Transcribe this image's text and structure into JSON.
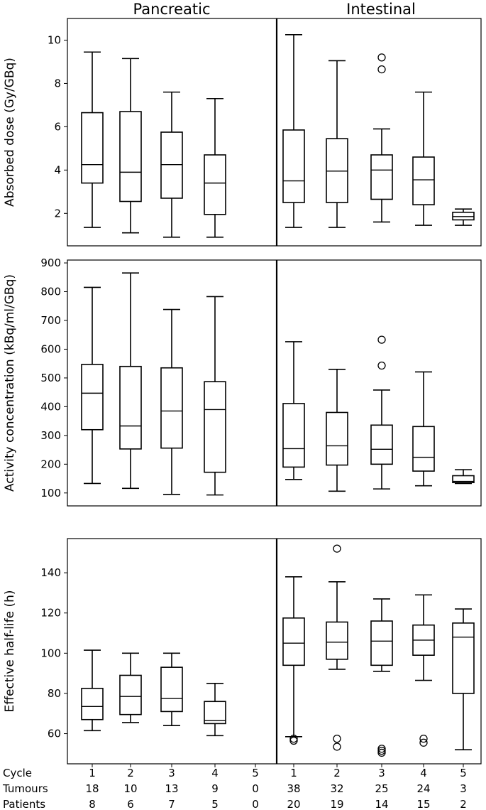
{
  "chart_data": {
    "type": "box",
    "column_titles": [
      "Pancreatic",
      "Intestinal"
    ],
    "panels": [
      {
        "ylabel": "Absorbed dose (Gy/GBq)",
        "ylim": [
          0.5,
          11
        ],
        "yticks": [
          2,
          4,
          6,
          8,
          10
        ],
        "groups": {
          "Pancreatic": [
            {
              "cycle": "1",
              "whislo": 1.35,
              "q1": 3.4,
              "med": 4.25,
              "q3": 6.65,
              "whishi": 9.45,
              "fliers": []
            },
            {
              "cycle": "2",
              "whislo": 1.1,
              "q1": 2.55,
              "med": 3.9,
              "q3": 6.7,
              "whishi": 9.15,
              "fliers": []
            },
            {
              "cycle": "3",
              "whislo": 0.9,
              "q1": 2.7,
              "med": 4.25,
              "q3": 5.75,
              "whishi": 7.6,
              "fliers": []
            },
            {
              "cycle": "4",
              "whislo": 0.9,
              "q1": 1.95,
              "med": 3.4,
              "q3": 4.7,
              "whishi": 7.3,
              "fliers": []
            }
          ],
          "Intestinal": [
            {
              "cycle": "1",
              "whislo": 1.35,
              "q1": 2.5,
              "med": 3.5,
              "q3": 5.85,
              "whishi": 10.25,
              "fliers": []
            },
            {
              "cycle": "2",
              "whislo": 1.35,
              "q1": 2.5,
              "med": 3.95,
              "q3": 5.45,
              "whishi": 9.05,
              "fliers": []
            },
            {
              "cycle": "3",
              "whislo": 1.6,
              "q1": 2.65,
              "med": 4.0,
              "q3": 4.7,
              "whishi": 5.9,
              "fliers": [
                8.65,
                9.2
              ]
            },
            {
              "cycle": "4",
              "whislo": 1.45,
              "q1": 2.4,
              "med": 3.55,
              "q3": 4.6,
              "whishi": 7.6,
              "fliers": []
            },
            {
              "cycle": "5",
              "whislo": 1.45,
              "q1": 1.7,
              "med": 1.85,
              "q3": 2.05,
              "whishi": 2.2,
              "fliers": []
            }
          ]
        }
      },
      {
        "ylabel": "Activity concentration (kBq/ml/GBq)",
        "ylim": [
          55,
          910
        ],
        "yticks": [
          100,
          200,
          300,
          400,
          500,
          600,
          700,
          800,
          900
        ],
        "groups": {
          "Pancreatic": [
            {
              "cycle": "1",
              "whislo": 133,
              "q1": 320,
              "med": 447,
              "q3": 547,
              "whishi": 815,
              "fliers": []
            },
            {
              "cycle": "2",
              "whislo": 116,
              "q1": 253,
              "med": 333,
              "q3": 540,
              "whishi": 865,
              "fliers": []
            },
            {
              "cycle": "3",
              "whislo": 95,
              "q1": 256,
              "med": 385,
              "q3": 535,
              "whishi": 738,
              "fliers": []
            },
            {
              "cycle": "4",
              "whislo": 93,
              "q1": 172,
              "med": 390,
              "q3": 487,
              "whishi": 783,
              "fliers": []
            }
          ],
          "Intestinal": [
            {
              "cycle": "1",
              "whislo": 147,
              "q1": 190,
              "med": 254,
              "q3": 411,
              "whishi": 626,
              "fliers": []
            },
            {
              "cycle": "2",
              "whislo": 106,
              "q1": 197,
              "med": 264,
              "q3": 380,
              "whishi": 530,
              "fliers": []
            },
            {
              "cycle": "3",
              "whislo": 114,
              "q1": 200,
              "med": 252,
              "q3": 336,
              "whishi": 458,
              "fliers": [
                543,
                633
              ]
            },
            {
              "cycle": "4",
              "whislo": 125,
              "q1": 176,
              "med": 224,
              "q3": 331,
              "whishi": 521,
              "fliers": []
            },
            {
              "cycle": "5",
              "whislo": 133,
              "q1": 136,
              "med": 140,
              "q3": 160,
              "whishi": 181,
              "fliers": []
            }
          ]
        }
      },
      {
        "ylabel": "Effective half-life (h)",
        "ylim": [
          45,
          157
        ],
        "yticks": [
          60,
          80,
          100,
          120,
          140
        ],
        "groups": {
          "Pancreatic": [
            {
              "cycle": "1",
              "whislo": 61.5,
              "q1": 67,
              "med": 73.5,
              "q3": 82.5,
              "whishi": 101.5,
              "fliers": []
            },
            {
              "cycle": "2",
              "whislo": 65.5,
              "q1": 69.5,
              "med": 78.5,
              "q3": 89,
              "whishi": 100,
              "fliers": []
            },
            {
              "cycle": "3",
              "whislo": 64,
              "q1": 71,
              "med": 77.5,
              "q3": 93,
              "whishi": 100,
              "fliers": []
            },
            {
              "cycle": "4",
              "whislo": 59,
              "q1": 65,
              "med": 66.5,
              "q3": 76,
              "whishi": 85,
              "fliers": []
            }
          ],
          "Intestinal": [
            {
              "cycle": "1",
              "whislo": 58.5,
              "q1": 94,
              "med": 105,
              "q3": 117.5,
              "whishi": 138,
              "fliers": [
                56.5,
                57.5
              ]
            },
            {
              "cycle": "2",
              "whislo": 92,
              "q1": 97,
              "med": 105.5,
              "q3": 115.5,
              "whishi": 135.5,
              "fliers": [
                152,
                57.5,
                53.5
              ]
            },
            {
              "cycle": "3",
              "whislo": 91,
              "q1": 94,
              "med": 106,
              "q3": 116,
              "whishi": 127,
              "fliers": [
                52.5,
                51.5,
                50.5
              ]
            },
            {
              "cycle": "4",
              "whislo": 86.5,
              "q1": 99,
              "med": 106.5,
              "q3": 114,
              "whishi": 129,
              "fliers": [
                57.5,
                55.5
              ]
            },
            {
              "cycle": "5",
              "whislo": 52,
              "q1": 80,
              "med": 108,
              "q3": 115,
              "whishi": 122,
              "fliers": []
            }
          ]
        }
      }
    ],
    "table": {
      "row_labels": [
        "Cycle",
        "Tumours",
        "Patients"
      ],
      "Pancreatic": {
        "Cycle": [
          "1",
          "2",
          "3",
          "4",
          "5"
        ],
        "Tumours": [
          "18",
          "10",
          "13",
          "9",
          "0"
        ],
        "Patients": [
          "8",
          "6",
          "7",
          "5",
          "0"
        ]
      },
      "Intestinal": {
        "Cycle": [
          "1",
          "2",
          "3",
          "4",
          "5"
        ],
        "Tumours": [
          "38",
          "32",
          "25",
          "24",
          "3"
        ],
        "Patients": [
          "20",
          "19",
          "14",
          "15",
          "2"
        ]
      }
    }
  }
}
